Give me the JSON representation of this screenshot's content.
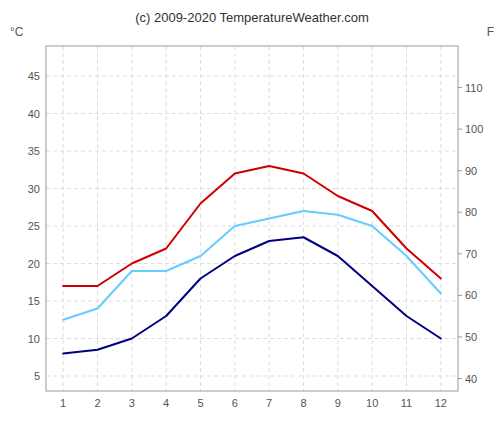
{
  "chart_data": {
    "type": "line",
    "title": "(c) 2009-2020 TemperatureWeather.com",
    "ylabel": "°C",
    "y2label": "F",
    "x": [
      1,
      2,
      3,
      4,
      5,
      6,
      7,
      8,
      9,
      10,
      11,
      12
    ],
    "series": [
      {
        "color": "#cc0000",
        "values": [
          17,
          17,
          20,
          22,
          28,
          32,
          33,
          32,
          29,
          27,
          22,
          18
        ]
      },
      {
        "color": "#000080",
        "values": [
          8,
          8.5,
          10,
          13,
          18,
          21,
          23,
          23.5,
          21,
          17,
          13,
          10
        ]
      },
      {
        "color": "#66ccff",
        "values": [
          12.5,
          14,
          19,
          19,
          21,
          25,
          26,
          27,
          26.5,
          25,
          21,
          16
        ]
      }
    ],
    "xlim": [
      0.5,
      12.5
    ],
    "xticks": [
      1,
      2,
      3,
      4,
      5,
      6,
      7,
      8,
      9,
      10,
      11,
      12
    ],
    "ylim": [
      3,
      49
    ],
    "yticks": [
      5,
      10,
      15,
      20,
      25,
      30,
      35,
      40,
      45
    ],
    "y2lim": [
      37,
      120
    ],
    "y2ticks": [
      40,
      50,
      60,
      70,
      80,
      90,
      100,
      110
    ],
    "grid": true
  }
}
